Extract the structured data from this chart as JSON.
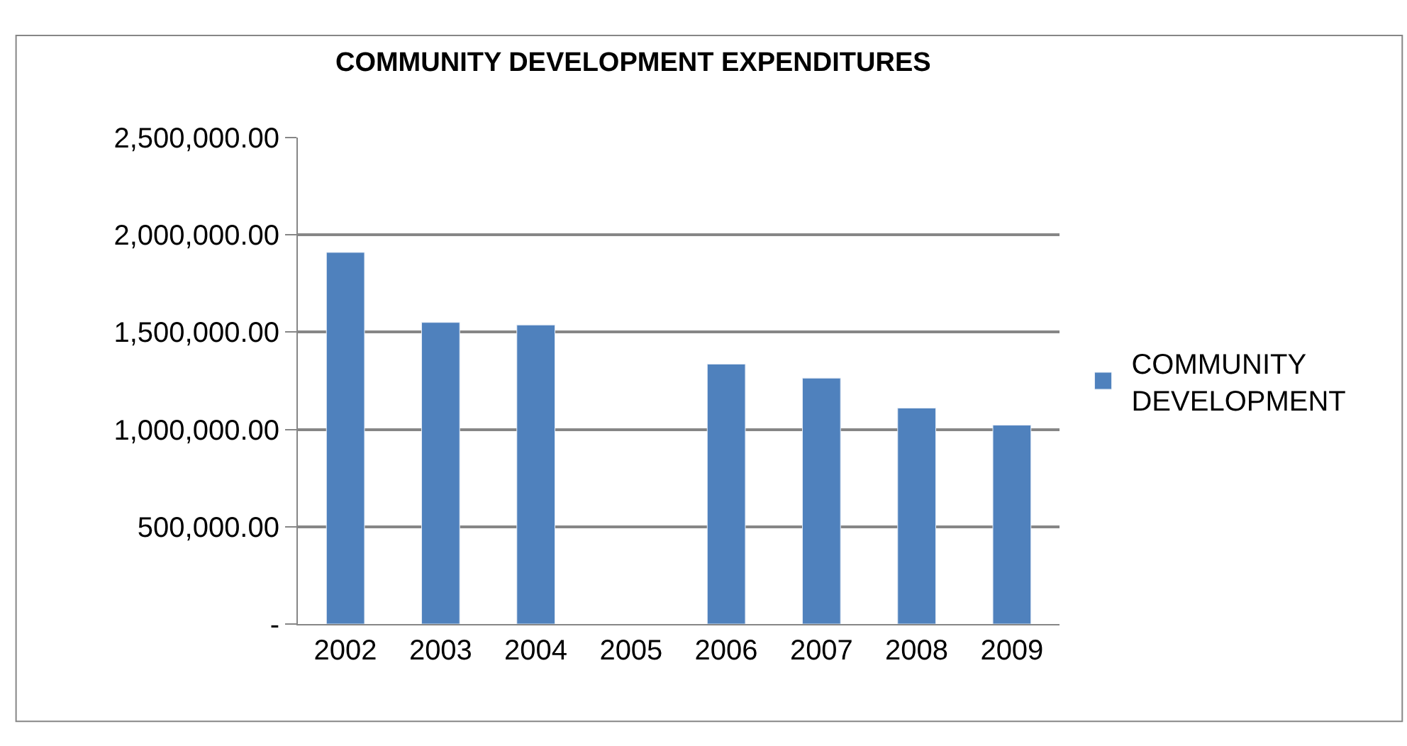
{
  "chart_data": {
    "type": "bar",
    "title": "COMMUNITY DEVELOPMENT EXPENDITURES",
    "categories": [
      "2002",
      "2003",
      "2004",
      "2005",
      "2006",
      "2007",
      "2008",
      "2009"
    ],
    "series": [
      {
        "name": "COMMUNITY DEVELOPMENT",
        "color": "#4f81bd",
        "values": [
          1910000,
          1550000,
          1537000,
          null,
          1336000,
          1264000,
          1110000,
          1022000
        ]
      }
    ],
    "ylim": [
      0,
      2500000
    ],
    "yticks": [
      {
        "value": 0,
        "label": "-"
      },
      {
        "value": 500000,
        "label": "500,000.00"
      },
      {
        "value": 1000000,
        "label": "1,000,000.00"
      },
      {
        "value": 1500000,
        "label": "1,500,000.00"
      },
      {
        "value": 2000000,
        "label": "2,000,000.00"
      },
      {
        "value": 2500000,
        "label": "2,500,000.00"
      }
    ],
    "grid": "y",
    "legend": "right"
  }
}
